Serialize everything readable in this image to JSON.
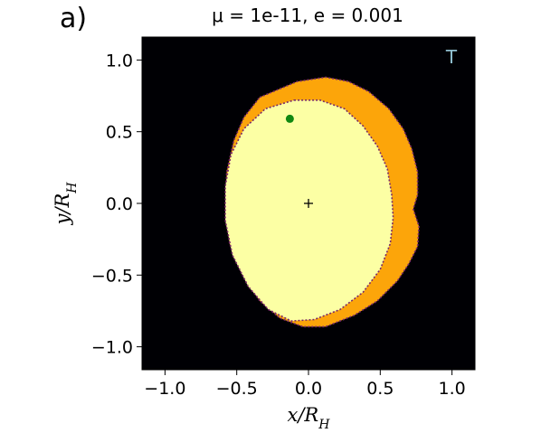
{
  "figure": {
    "panel_label": "a)",
    "title": "μ = 1e-11, e = 0.001",
    "corner_label": "T"
  },
  "chart_data": {
    "type": "heatmap",
    "title": "μ = 1e-11, e = 0.001",
    "xlabel": "x/R_H",
    "ylabel": "y/R_H",
    "xlim": [
      -1.16,
      1.16
    ],
    "ylim": [
      -1.16,
      1.16
    ],
    "xticks": [
      -1.0,
      -0.5,
      0.0,
      0.5,
      1.0
    ],
    "yticks": [
      -1.0,
      -0.5,
      0.0,
      0.5,
      1.0
    ],
    "xtick_labels": [
      "−1.0",
      "−0.5",
      "0.0",
      "0.5",
      "1.0"
    ],
    "ytick_labels": [
      "−1.0",
      "−0.5",
      "0.0",
      "0.5",
      "1.0"
    ],
    "grid": false,
    "background_color": "#000004",
    "regions": [
      {
        "color": "#fca50a",
        "outline": [
          [
            -0.34,
            0.74
          ],
          [
            -0.08,
            0.85
          ],
          [
            0.12,
            0.88
          ],
          [
            0.28,
            0.85
          ],
          [
            0.42,
            0.78
          ],
          [
            0.56,
            0.66
          ],
          [
            0.66,
            0.52
          ],
          [
            0.72,
            0.38
          ],
          [
            0.76,
            0.22
          ],
          [
            0.76,
            0.06
          ],
          [
            0.73,
            -0.04
          ],
          [
            0.77,
            -0.16
          ],
          [
            0.76,
            -0.3
          ],
          [
            0.7,
            -0.42
          ],
          [
            0.62,
            -0.54
          ],
          [
            0.48,
            -0.68
          ],
          [
            0.32,
            -0.78
          ],
          [
            0.12,
            -0.86
          ],
          [
            -0.04,
            -0.86
          ],
          [
            -0.2,
            -0.8
          ],
          [
            -0.34,
            -0.68
          ],
          [
            -0.46,
            -0.5
          ],
          [
            -0.55,
            -0.28
          ],
          [
            -0.58,
            -0.04
          ],
          [
            -0.57,
            0.22
          ],
          [
            -0.52,
            0.44
          ],
          [
            -0.45,
            0.6
          ]
        ]
      },
      {
        "color": "#fcffa4",
        "outline": [
          [
            -0.1,
            0.72
          ],
          [
            0.08,
            0.72
          ],
          [
            0.25,
            0.66
          ],
          [
            0.38,
            0.54
          ],
          [
            0.48,
            0.4
          ],
          [
            0.55,
            0.24
          ],
          [
            0.58,
            0.06
          ],
          [
            0.59,
            -0.1
          ],
          [
            0.57,
            -0.28
          ],
          [
            0.5,
            -0.46
          ],
          [
            0.38,
            -0.62
          ],
          [
            0.22,
            -0.74
          ],
          [
            0.04,
            -0.81
          ],
          [
            -0.12,
            -0.82
          ],
          [
            -0.28,
            -0.74
          ],
          [
            -0.42,
            -0.58
          ],
          [
            -0.53,
            -0.36
          ],
          [
            -0.58,
            -0.12
          ],
          [
            -0.58,
            0.12
          ],
          [
            -0.54,
            0.34
          ],
          [
            -0.45,
            0.52
          ],
          [
            -0.3,
            0.66
          ]
        ]
      }
    ],
    "markers": [
      {
        "type": "point",
        "x": -0.13,
        "y": 0.59,
        "color": "#118811"
      },
      {
        "type": "plus",
        "x": 0.0,
        "y": 0.0,
        "color": "#000000"
      }
    ],
    "colors": {
      "outside": "#000004",
      "outer_region": "#fca50a",
      "inner_region": "#fcffa4",
      "boundary": "#7a2a6a",
      "corner_label": "#8fbfd0"
    }
  }
}
